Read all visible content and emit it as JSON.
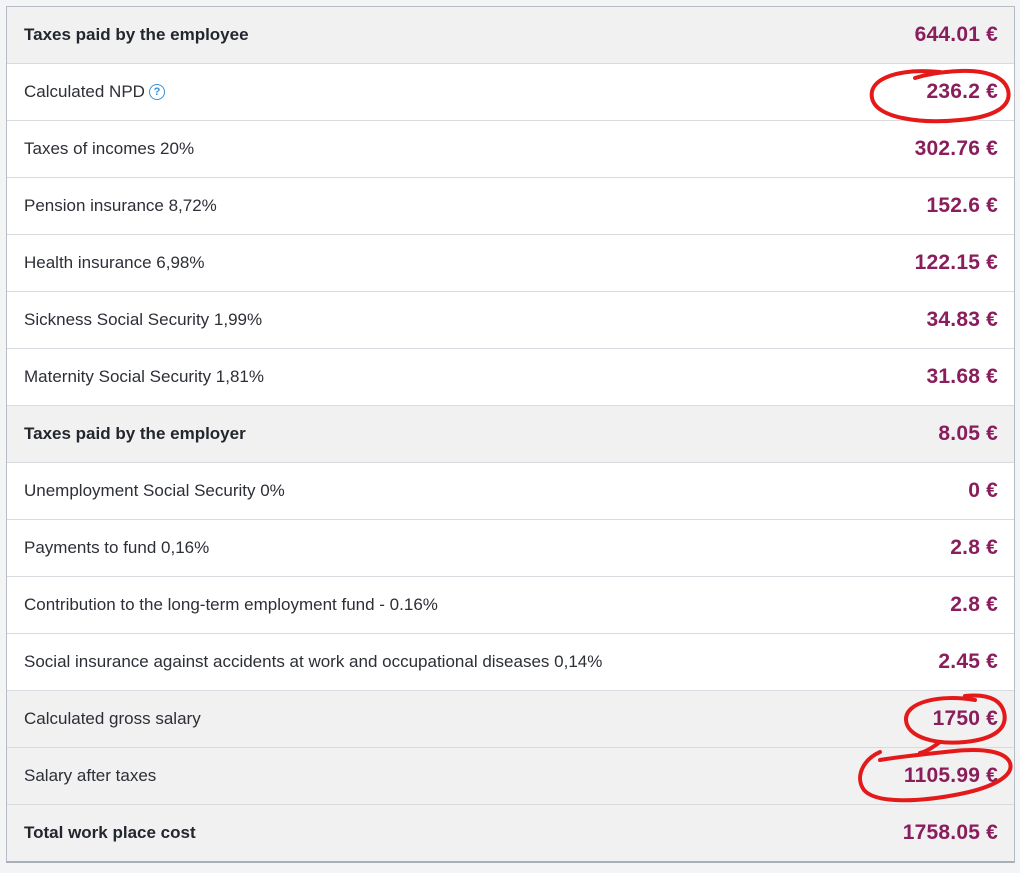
{
  "rows": [
    {
      "label": "Taxes paid by the employee",
      "value": "644.01 €"
    },
    {
      "label": "Calculated NPD",
      "value": "236.2 €",
      "help_icon": "question-circle-icon"
    },
    {
      "label": "Taxes of incomes 20%",
      "value": "302.76 €"
    },
    {
      "label": "Pension insurance 8,72%",
      "value": "152.6 €"
    },
    {
      "label": "Health insurance 6,98%",
      "value": "122.15 €"
    },
    {
      "label": "Sickness Social Security 1,99%",
      "value": "34.83 €"
    },
    {
      "label": "Maternity Social Security 1,81%",
      "value": "31.68 €"
    },
    {
      "label": "Taxes paid by the employer",
      "value": "8.05 €"
    },
    {
      "label": "Unemployment Social Security 0%",
      "value": "0 €"
    },
    {
      "label": "Payments to fund 0,16%",
      "value": "2.8 €"
    },
    {
      "label": "Contribution to the long-term employment fund - 0.16%",
      "value": "2.8 €"
    },
    {
      "label": "Social insurance against accidents at work and occupational diseases 0,14%",
      "value": "2.45 €"
    },
    {
      "label": "Calculated gross salary",
      "value": "1750 €"
    },
    {
      "label": "Salary after taxes",
      "value": "1105.99 €"
    },
    {
      "label": "Total work place cost",
      "value": "1758.05 €"
    }
  ],
  "colors": {
    "value_text": "#8a1d5b",
    "annotation": "#e41a1a",
    "help_icon": "#3a8fd6"
  }
}
